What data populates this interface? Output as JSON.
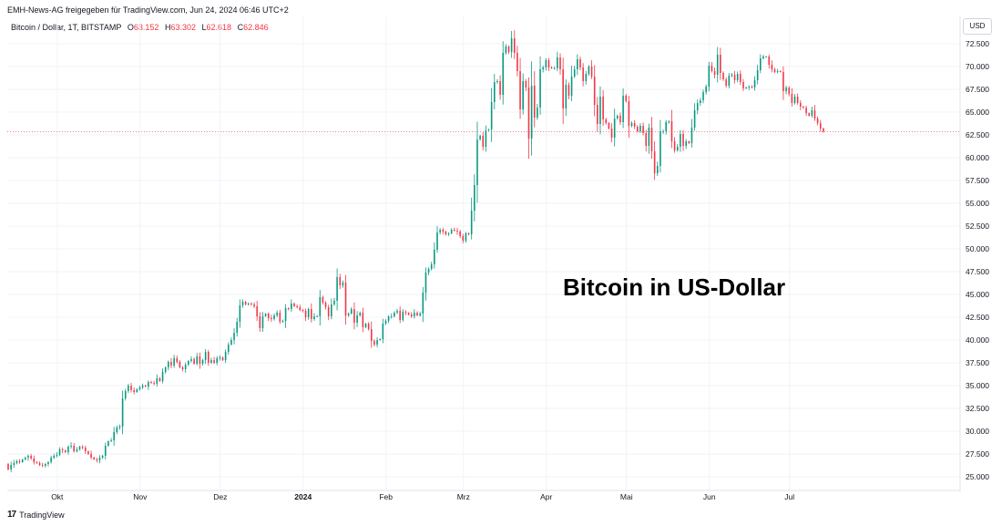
{
  "header": {
    "text": "EMH-News-AG freigegeben für TradingView.com, Jun 24, 2024 06:46 UTC+2"
  },
  "legend": {
    "symbol": "Bitcoin / Dollar, 1T, BITSTAMP",
    "open_label": "O",
    "open": "63.152",
    "high_label": "H",
    "high": "63.302",
    "low_label": "L",
    "low": "62.618",
    "close_label": "C",
    "close": "62.846"
  },
  "currency_button": "USD",
  "annotation": "Bitcoin in US-Dollar",
  "footer": {
    "logo": "17",
    "brand": "TradingView"
  },
  "colors": {
    "up": "#089981",
    "down": "#f23645",
    "grid": "#f0f3fa",
    "last_price": "#f23645"
  },
  "chart_data": {
    "type": "candlestick",
    "title": "Bitcoin in US-Dollar",
    "ylim": [
      23500,
      75500
    ],
    "ytick_values": [
      25000,
      27500,
      30000,
      32500,
      35000,
      37500,
      40000,
      42500,
      45000,
      47500,
      50000,
      52500,
      55000,
      57500,
      60000,
      62500,
      65000,
      67500,
      70000,
      72500
    ],
    "ytick_labels": [
      "25.000",
      "27.500",
      "30.000",
      "32.500",
      "35.000",
      "37.500",
      "40.000",
      "42.500",
      "45.000",
      "47.500",
      "50.000",
      "52.500",
      "55.000",
      "57.500",
      "60.000",
      "62.500",
      "65.000",
      "67.500",
      "70.000",
      "72.500"
    ],
    "x_range_days": [
      0,
      330
    ],
    "xticks": [
      {
        "label": "Okt",
        "day": 18,
        "bold": false
      },
      {
        "label": "Nov",
        "day": 49,
        "bold": false
      },
      {
        "label": "Dez",
        "day": 79,
        "bold": false
      },
      {
        "label": "2024",
        "day": 110,
        "bold": true
      },
      {
        "label": "Feb",
        "day": 141,
        "bold": false
      },
      {
        "label": "Mrz",
        "day": 170,
        "bold": false
      },
      {
        "label": "Apr",
        "day": 201,
        "bold": false
      },
      {
        "label": "Mai",
        "day": 231,
        "bold": false
      },
      {
        "label": "Jun",
        "day": 262,
        "bold": false
      },
      {
        "label": "Jul",
        "day": 292,
        "bold": false
      }
    ],
    "last_price": 62846,
    "closes": [
      25800,
      26300,
      26500,
      26700,
      26600,
      26900,
      27100,
      27300,
      27000,
      26600,
      26500,
      26300,
      26200,
      26400,
      26600,
      27100,
      27300,
      27400,
      28000,
      27900,
      27700,
      28300,
      28400,
      27800,
      28000,
      28300,
      28200,
      27800,
      27500,
      27100,
      26900,
      26800,
      27100,
      27300,
      28400,
      28900,
      29000,
      29900,
      30400,
      30500,
      33600,
      34400,
      35000,
      34500,
      34300,
      34600,
      34800,
      35000,
      34900,
      35400,
      35300,
      35200,
      35800,
      35500,
      36500,
      37000,
      37600,
      37200,
      38000,
      37600,
      37000,
      36800,
      37300,
      37700,
      37900,
      37400,
      38200,
      37400,
      37800,
      38700,
      37500,
      37800,
      37500,
      38000,
      38100,
      37800,
      38700,
      39500,
      40000,
      40800,
      42000,
      43800,
      44200,
      43900,
      44000,
      43900,
      43700,
      42600,
      41300,
      42600,
      42900,
      42400,
      42300,
      42700,
      43000,
      42000,
      42100,
      43500,
      43400,
      44000,
      43700,
      43600,
      43300,
      43200,
      42500,
      43400,
      42300,
      42600,
      42600,
      44700,
      44100,
      43600,
      42600,
      43900,
      44300,
      46900,
      46000,
      46300,
      42700,
      42900,
      43400,
      41900,
      42700,
      43000,
      41400,
      41800,
      41200,
      39900,
      39500,
      40000,
      40100,
      41800,
      42100,
      42600,
      42600,
      43000,
      43200,
      42200,
      43100,
      43000,
      42800,
      42600,
      43000,
      42700,
      42900,
      45200,
      47400,
      47800,
      48300,
      49900,
      51800,
      52100,
      51900,
      51600,
      51700,
      52100,
      52000,
      51900,
      51400,
      50900,
      51700,
      51600,
      54200,
      57000,
      62000,
      62400,
      61200,
      63000,
      63100,
      66100,
      68300,
      68400,
      66900,
      71500,
      72200,
      71600,
      73100,
      71500,
      69500,
      65300,
      68400,
      67700,
      62100,
      67900,
      64400,
      65500,
      69700,
      69900,
      70700,
      69900,
      69800,
      69800,
      71000,
      69700,
      65400,
      68000,
      66800,
      68900,
      69700,
      70800,
      69900,
      68400,
      69200,
      70000,
      68900,
      65800,
      63700,
      66700,
      64200,
      63800,
      63200,
      62200,
      64300,
      64600,
      63900,
      66800,
      66200,
      63500,
      63800,
      63400,
      62900,
      63500,
      62700,
      61300,
      63300,
      60700,
      58300,
      59100,
      62900,
      62900,
      63900,
      64000,
      61800,
      60800,
      61200,
      62600,
      61300,
      61800,
      61600,
      63300,
      65200,
      66000,
      66300,
      67200,
      67800,
      70100,
      69500,
      69100,
      71300,
      69300,
      68600,
      67900,
      69000,
      69100,
      68500,
      69200,
      68300,
      67600,
      67700,
      67800,
      67700,
      68500,
      69600,
      70900,
      71100,
      71100,
      70200,
      69700,
      69400,
      69500,
      69400,
      67300,
      67700,
      67000,
      66000,
      66700,
      66000,
      65600,
      65500,
      64900,
      64600,
      65200,
      64300,
      63800,
      63200,
      62846
    ],
    "first_open": 26400,
    "wick_scale": 0.45
  }
}
